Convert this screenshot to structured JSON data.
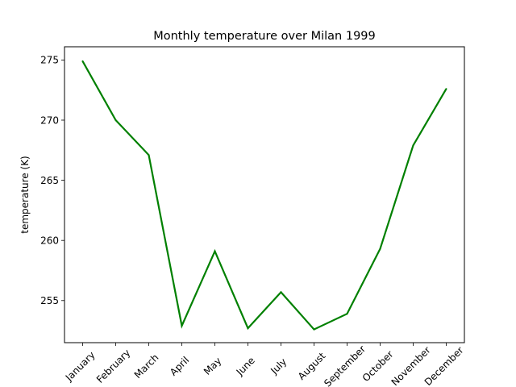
{
  "chart_data": {
    "type": "line",
    "title": "Monthly temperature over Milan 1999",
    "xlabel": "",
    "ylabel": "temperature (K)",
    "categories": [
      "January",
      "February",
      "March",
      "April",
      "May",
      "June",
      "July",
      "August",
      "September",
      "October",
      "November",
      "December"
    ],
    "series": [
      {
        "values": [
          274.9,
          270.0,
          267.1,
          252.9,
          259.1,
          252.7,
          255.7,
          252.6,
          253.9,
          259.3,
          267.9,
          272.6
        ],
        "color": "#008000"
      }
    ],
    "yticks": [
      255,
      260,
      265,
      270,
      275
    ],
    "ylim": [
      251.5,
      276.1
    ],
    "grid": false,
    "legend": "none"
  }
}
